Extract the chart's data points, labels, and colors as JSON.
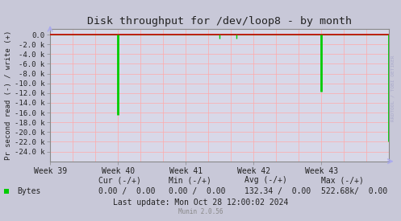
{
  "title": "Disk throughput for /dev/loop8 - by month",
  "ylabel": "Pr second read (-) / write (+)",
  "background_color": "#c8c8d8",
  "plot_bg_color": "#d8d8e8",
  "grid_color": "#ffaaaa",
  "spine_color": "#888888",
  "title_color": "#222222",
  "tick_color": "#222222",
  "watermark": "RRDTOOL / TOBI OETIKER",
  "munin_version": "Munin 2.0.56",
  "legend_label": "Bytes",
  "legend_color": "#00cc00",
  "cur_neg": "0.00",
  "cur_pos": "0.00",
  "min_neg": "0.00",
  "min_pos": "0.00",
  "avg_neg": "132.34",
  "avg_pos": "0.00",
  "max_neg": "522.68k/",
  "max_pos": "0.00",
  "last_update": "Last update: Mon Oct 28 12:00:02 2024",
  "xtick_labels": [
    "Week 39",
    "Week 40",
    "Week 41",
    "Week 42",
    "Week 43"
  ],
  "ylim": [
    -26000,
    1200
  ],
  "yticks": [
    0,
    -2000,
    -4000,
    -6000,
    -8000,
    -10000,
    -12000,
    -14000,
    -16000,
    -18000,
    -20000,
    -22000,
    -24000
  ],
  "ytick_labels": [
    "0.0",
    "-2.0 k",
    "-4.0 k",
    "-6.0 k",
    "-8.0 k",
    "-10.0 k",
    "-12.0 k",
    "-14.0 k",
    "-16.0 k",
    "-18.0 k",
    "-20.0 k",
    "-22.0 k",
    "-24.0 k"
  ],
  "xlim": [
    0,
    840
  ],
  "xtick_positions": [
    0,
    168,
    336,
    504,
    672
  ],
  "line_color": "#00cc00",
  "zero_line_color": "#cc0000",
  "spike_x": [
    168,
    420,
    462,
    672,
    840
  ],
  "spike_y": [
    -16500,
    -800,
    -800,
    -11700,
    -22000
  ],
  "spike_width": [
    2,
    1,
    1,
    2,
    2
  ],
  "arrow_color": "#aaaacc",
  "fig_bg": "#c8c8d8"
}
